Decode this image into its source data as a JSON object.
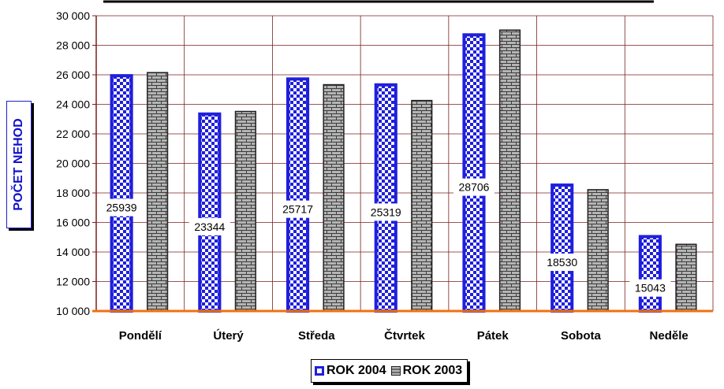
{
  "chart_data": {
    "type": "bar",
    "categories": [
      "Pondělí",
      "Úterý",
      "Středa",
      "Čtvrtek",
      "Pátek",
      "Sobota",
      "Neděle"
    ],
    "series": [
      {
        "name": "ROK 2004",
        "values": [
          25939,
          23344,
          25717,
          25319,
          28706,
          18530,
          15043
        ],
        "color": "#1f1fdd",
        "pattern": "checker"
      },
      {
        "name": "ROK 2003",
        "values": [
          26150,
          23520,
          25330,
          24260,
          29030,
          18220,
          14520
        ],
        "color": "#555555",
        "pattern": "brick"
      }
    ],
    "data_labels": [
      "25939",
      "23344",
      "25717",
      "25319",
      "28706",
      "18530",
      "15043"
    ],
    "ylabel": "POČET NEHOD",
    "ylim": [
      10000,
      30000
    ],
    "yticks": [
      10000,
      12000,
      14000,
      16000,
      18000,
      20000,
      22000,
      24000,
      26000,
      28000,
      30000
    ],
    "ytick_labels": [
      "10 000",
      "12 000",
      "14 000",
      "16 000",
      "18 000",
      "20 000",
      "22 000",
      "24 000",
      "26 000",
      "28 000",
      "30 000"
    ],
    "grid": true,
    "legend_position": "bottom",
    "colors": {
      "grid": "#7a1f1f",
      "baseline": "#f07010",
      "axis": "#7a1f1f"
    }
  }
}
